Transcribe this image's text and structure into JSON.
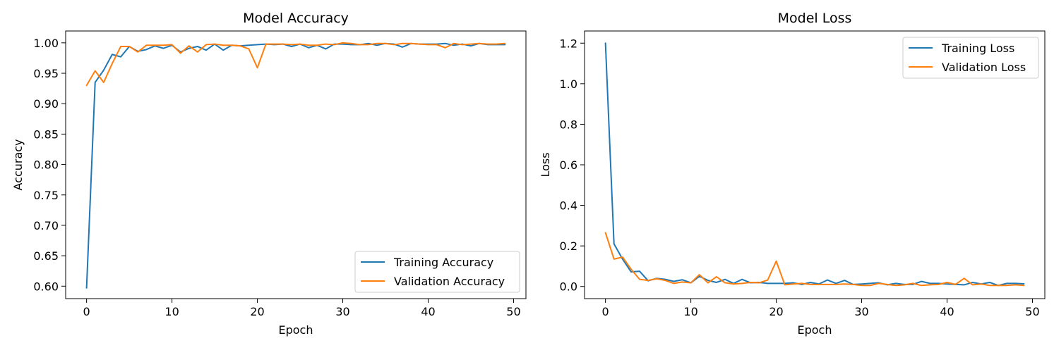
{
  "chart_data": [
    {
      "type": "line",
      "title": "Model Accuracy",
      "xlabel": "Epoch",
      "ylabel": "Accuracy",
      "xlim": [
        -2.45,
        51.45
      ],
      "ylim": [
        0.5795,
        1.0195
      ],
      "x_ticks": [
        0,
        10,
        20,
        30,
        40,
        50
      ],
      "y_ticks": [
        0.6,
        0.65,
        0.7,
        0.75,
        0.8,
        0.85,
        0.9,
        0.95,
        1.0
      ],
      "legend_position": "bottom-right",
      "x": [
        0,
        1,
        2,
        3,
        4,
        5,
        6,
        7,
        8,
        9,
        10,
        11,
        12,
        13,
        14,
        15,
        16,
        17,
        18,
        19,
        20,
        21,
        22,
        23,
        24,
        25,
        26,
        27,
        28,
        29,
        30,
        31,
        32,
        33,
        34,
        35,
        36,
        37,
        38,
        39,
        40,
        41,
        42,
        43,
        44,
        45,
        46,
        47,
        48,
        49
      ],
      "series": [
        {
          "name": "Training Accuracy",
          "color": "#1f77b4",
          "values": [
            0.597,
            0.935,
            0.955,
            0.981,
            0.977,
            0.994,
            0.986,
            0.989,
            0.995,
            0.991,
            0.996,
            0.985,
            0.991,
            0.994,
            0.988,
            0.998,
            0.988,
            0.996,
            0.995,
            0.996,
            0.997,
            0.998,
            0.997,
            0.998,
            0.994,
            0.998,
            0.992,
            0.996,
            0.99,
            0.998,
            0.998,
            0.997,
            0.997,
            0.999,
            0.996,
            0.999,
            0.998,
            0.993,
            0.999,
            0.998,
            0.998,
            0.998,
            0.999,
            0.996,
            0.998,
            0.995,
            0.999,
            0.997,
            0.997,
            0.997
          ]
        },
        {
          "name": "Validation Accuracy",
          "color": "#ff7f0e",
          "values": [
            0.93,
            0.954,
            0.935,
            0.966,
            0.994,
            0.994,
            0.985,
            0.996,
            0.996,
            0.996,
            0.997,
            0.983,
            0.995,
            0.985,
            0.997,
            0.998,
            0.996,
            0.996,
            0.995,
            0.99,
            0.959,
            0.998,
            0.998,
            0.998,
            0.997,
            0.998,
            0.996,
            0.996,
            0.998,
            0.997,
            1.0,
            0.999,
            0.997,
            0.997,
            0.999,
            0.999,
            0.997,
            0.999,
            0.999,
            0.998,
            0.997,
            0.997,
            0.992,
            0.999,
            0.997,
            0.998,
            0.999,
            0.998,
            0.998,
            0.999
          ]
        }
      ]
    },
    {
      "type": "line",
      "title": "Model Loss",
      "xlabel": "Epoch",
      "ylabel": "Loss",
      "xlim": [
        -2.45,
        51.45
      ],
      "ylim": [
        -0.06,
        1.26
      ],
      "x_ticks": [
        0,
        10,
        20,
        30,
        40,
        50
      ],
      "y_ticks": [
        0.0,
        0.2,
        0.4,
        0.6,
        0.8,
        1.0,
        1.2
      ],
      "legend_position": "top-right",
      "x": [
        0,
        1,
        2,
        3,
        4,
        5,
        6,
        7,
        8,
        9,
        10,
        11,
        12,
        13,
        14,
        15,
        16,
        17,
        18,
        19,
        20,
        21,
        22,
        23,
        24,
        25,
        26,
        27,
        28,
        29,
        30,
        31,
        32,
        33,
        34,
        35,
        36,
        37,
        38,
        39,
        40,
        41,
        42,
        43,
        44,
        45,
        46,
        47,
        48,
        49
      ],
      "series": [
        {
          "name": "Training Loss",
          "color": "#1f77b4",
          "values": [
            1.2,
            0.21,
            0.135,
            0.072,
            0.075,
            0.028,
            0.04,
            0.035,
            0.025,
            0.033,
            0.018,
            0.05,
            0.03,
            0.02,
            0.035,
            0.015,
            0.035,
            0.018,
            0.02,
            0.015,
            0.015,
            0.015,
            0.018,
            0.01,
            0.02,
            0.012,
            0.032,
            0.015,
            0.03,
            0.01,
            0.012,
            0.015,
            0.018,
            0.008,
            0.015,
            0.01,
            0.01,
            0.025,
            0.015,
            0.015,
            0.012,
            0.01,
            0.008,
            0.02,
            0.012,
            0.02,
            0.005,
            0.015,
            0.015,
            0.013
          ]
        },
        {
          "name": "Validation Loss",
          "color": "#ff7f0e",
          "values": [
            0.265,
            0.135,
            0.145,
            0.085,
            0.035,
            0.03,
            0.038,
            0.03,
            0.015,
            0.022,
            0.018,
            0.058,
            0.018,
            0.048,
            0.018,
            0.012,
            0.015,
            0.02,
            0.018,
            0.032,
            0.125,
            0.008,
            0.012,
            0.015,
            0.01,
            0.01,
            0.01,
            0.01,
            0.012,
            0.01,
            0.005,
            0.005,
            0.015,
            0.01,
            0.005,
            0.008,
            0.015,
            0.005,
            0.008,
            0.01,
            0.02,
            0.01,
            0.04,
            0.008,
            0.012,
            0.005,
            0.005,
            0.005,
            0.008,
            0.005
          ]
        }
      ]
    }
  ]
}
